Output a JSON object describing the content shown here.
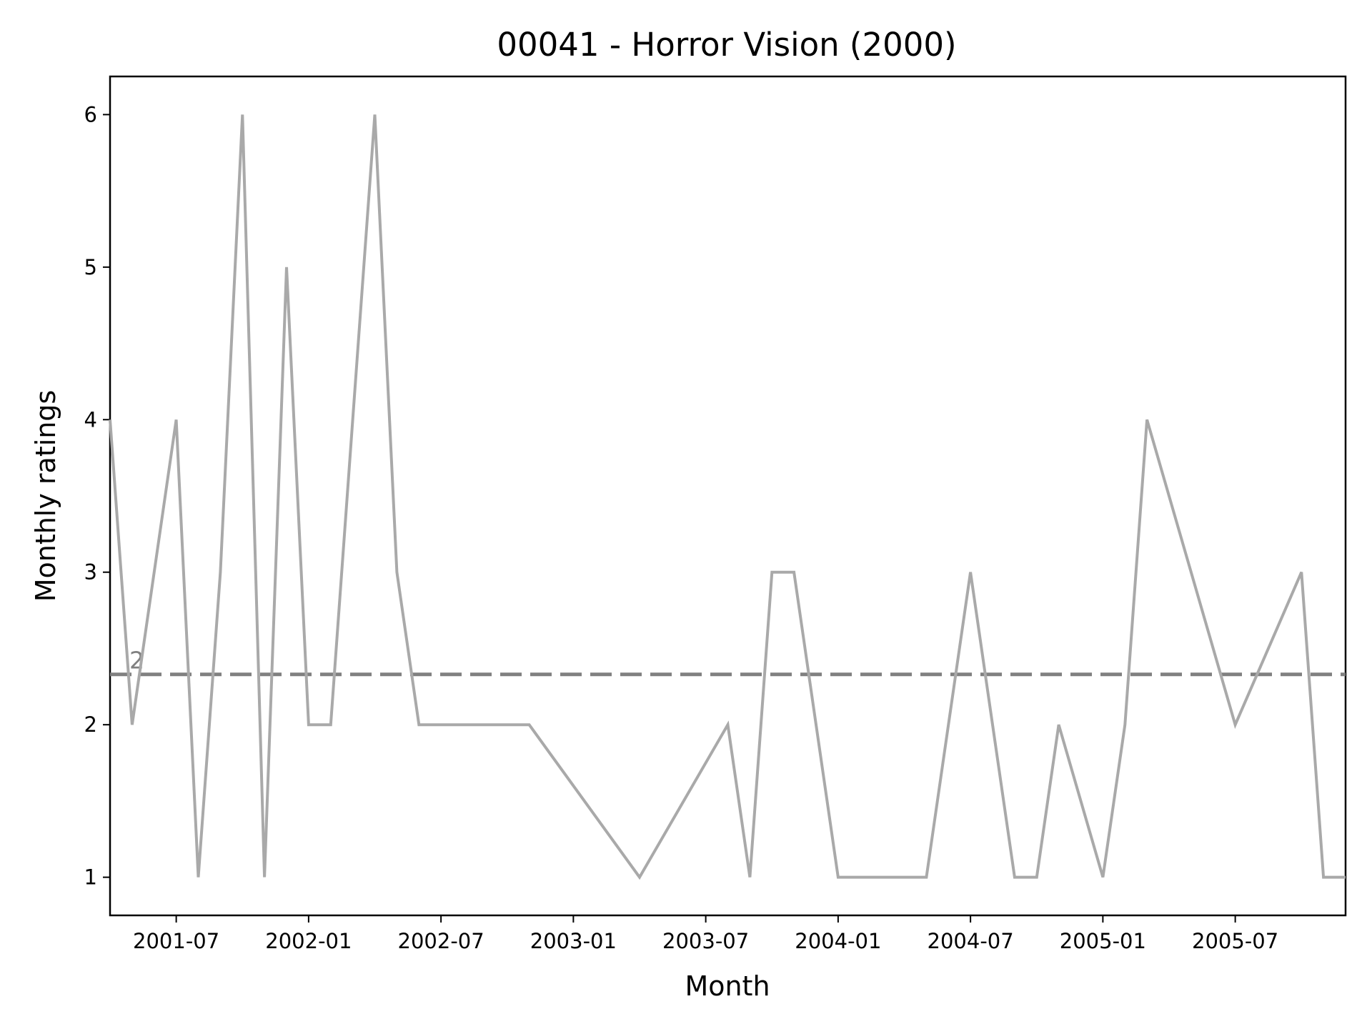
{
  "chart_data": {
    "type": "line",
    "title": "00041 - Horror Vision (2000)",
    "xlabel": "Month",
    "ylabel": "Monthly ratings",
    "x_range": [
      "2001-04",
      "2005-12"
    ],
    "ylim": [
      0.75,
      6.25
    ],
    "grid": false,
    "x_ticks": [
      "2001-07",
      "2002-01",
      "2002-07",
      "2003-01",
      "2003-07",
      "2004-01",
      "2004-07",
      "2005-01",
      "2005-07"
    ],
    "y_ticks": [
      1,
      2,
      3,
      4,
      5,
      6
    ],
    "series": [
      {
        "color": "#a9a9a9",
        "x": [
          "2001-04",
          "2001-05",
          "2001-07",
          "2001-08",
          "2001-09",
          "2001-10",
          "2001-11",
          "2001-12",
          "2002-01",
          "2002-02",
          "2002-03",
          "2002-04",
          "2002-05",
          "2002-06",
          "2002-11",
          "2003-04",
          "2003-08",
          "2003-09",
          "2003-10",
          "2003-11",
          "2004-01",
          "2004-05",
          "2004-07",
          "2004-09",
          "2004-10",
          "2004-11",
          "2005-01",
          "2005-02",
          "2005-03",
          "2005-07",
          "2005-10",
          "2005-11",
          "2005-12"
        ],
        "y": [
          4,
          2,
          4,
          1,
          3,
          6,
          1,
          5,
          2,
          2,
          4,
          6,
          3,
          2,
          2,
          1,
          2,
          1,
          3,
          3,
          1,
          1,
          3,
          1,
          1,
          2,
          1,
          2,
          4,
          2,
          3,
          1,
          1
        ]
      }
    ],
    "reference_line": {
      "value": 2.33,
      "label": "2",
      "color": "#808080",
      "style": "dashed"
    }
  }
}
